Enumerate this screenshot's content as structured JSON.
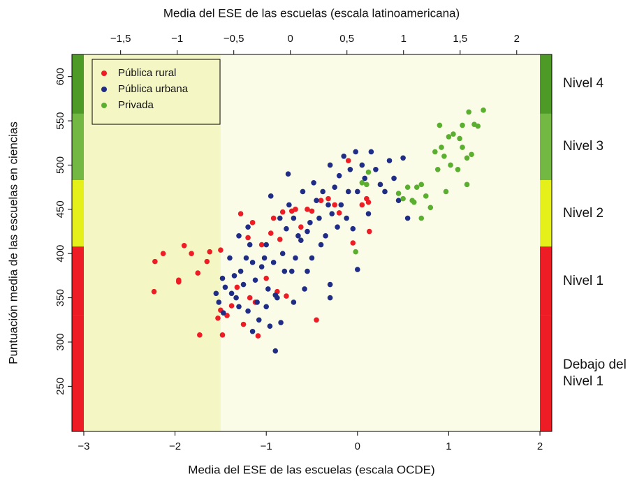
{
  "chart_data": {
    "type": "scatter",
    "x_label": "Media del ESE de las escuelas (escala OCDE)",
    "x2_label": "Media del ESE de las escuelas (escala latinoamericana)",
    "y_label": "Puntuación media de las escuelas en ciencias",
    "xlim": [
      -3.13,
      2.13
    ],
    "xticks": [
      {
        "value": -3,
        "label": "−3"
      },
      {
        "value": -2,
        "label": "−2"
      },
      {
        "value": -1,
        "label": "−1"
      },
      0,
      1,
      2
    ],
    "x2lim": [
      -1.93,
      2.31
    ],
    "x2ticks": [
      {
        "value": -1.5,
        "label": "−1,5"
      },
      {
        "value": -1,
        "label": "−1"
      },
      {
        "value": -0.5,
        "label": "−0,5"
      },
      0,
      {
        "value": 0.5,
        "label": "0,5"
      },
      1,
      {
        "value": 1.5,
        "label": "1,5"
      },
      2
    ],
    "ylim": [
      199,
      625
    ],
    "yticks": [
      250,
      300,
      350,
      400,
      450,
      500,
      550,
      600
    ],
    "shaded_below_x": -1.5,
    "legend": "top-left",
    "levels": [
      {
        "label": "Debajo del Nivel 1",
        "from": 199,
        "to": 330,
        "color": "#ee1c25"
      },
      {
        "label": "Nivel 1",
        "from": 330,
        "to": 408,
        "color": "#ee1c25"
      },
      {
        "label": "Nivel 2",
        "from": 408,
        "to": 483,
        "color": "#e5ef1a"
      },
      {
        "label": "Nivel 3",
        "from": 483,
        "to": 558,
        "color": "#72b843"
      },
      {
        "label": "Nivel 4",
        "from": 558,
        "to": 625,
        "color": "#4e9a26"
      }
    ],
    "series": [
      {
        "name": "Pública rural",
        "color": "#ee1c25",
        "x": [
          -2.23,
          -2.22,
          -2.13,
          -1.96,
          -1.96,
          -1.9,
          -1.82,
          -1.75,
          -1.73,
          -1.65,
          -1.62,
          -1.5,
          -1.53,
          -1.5,
          -1.48,
          -1.43,
          -1.38,
          -1.32,
          -1.28,
          -1.25,
          -1.2,
          -1.18,
          -1.15,
          -1.12,
          -1.09,
          -1.05,
          -1.0,
          -0.95,
          -0.92,
          -0.88,
          -0.85,
          -0.82,
          -0.78,
          -0.72,
          -0.68,
          -0.62,
          -0.55,
          -0.5,
          -0.45,
          -0.4,
          -0.32,
          -0.25,
          -0.2,
          -0.1,
          -0.05,
          0.05,
          0.1,
          0.12,
          0.13
        ],
        "y": [
          357,
          391,
          400,
          370,
          368,
          409,
          400,
          378,
          308,
          391,
          402,
          404,
          327,
          336,
          308,
          330,
          341,
          362,
          445,
          320,
          418,
          350,
          435,
          345,
          307,
          410,
          372,
          423,
          440,
          357,
          416,
          447,
          352,
          448,
          450,
          430,
          450,
          448,
          325,
          460,
          462,
          455,
          446,
          505,
          412,
          455,
          462,
          458,
          425
        ]
      },
      {
        "name": "Pública urbana",
        "color": "#1f2d86",
        "x": [
          -1.55,
          -1.52,
          -1.48,
          -1.47,
          -1.45,
          -1.4,
          -1.38,
          -1.35,
          -1.33,
          -1.3,
          -1.3,
          -1.28,
          -1.25,
          -1.22,
          -1.2,
          -1.2,
          -1.18,
          -1.15,
          -1.15,
          -1.12,
          -1.1,
          -1.08,
          -1.05,
          -1.02,
          -1.0,
          -1.0,
          -0.98,
          -0.96,
          -0.95,
          -0.92,
          -0.9,
          -0.9,
          -0.88,
          -0.85,
          -0.84,
          -0.82,
          -0.8,
          -0.78,
          -0.76,
          -0.75,
          -0.72,
          -0.7,
          -0.68,
          -0.65,
          -0.62,
          -0.6,
          -0.58,
          -0.55,
          -0.52,
          -0.5,
          -0.48,
          -0.45,
          -0.42,
          -0.4,
          -0.38,
          -0.35,
          -0.32,
          -0.3,
          -0.28,
          -0.25,
          -0.22,
          -0.2,
          -0.18,
          -0.15,
          -0.12,
          -0.1,
          -0.08,
          -0.05,
          -0.02,
          0.0,
          0.0,
          0.05,
          0.08,
          0.12,
          0.15,
          0.2,
          0.25,
          0.3,
          0.35,
          0.4,
          0.45,
          0.5,
          0.55,
          -0.3,
          -0.3,
          -0.55,
          -0.7
        ],
        "y": [
          355,
          345,
          372,
          333,
          362,
          395,
          355,
          375,
          350,
          340,
          420,
          380,
          365,
          395,
          430,
          335,
          410,
          390,
          312,
          370,
          345,
          325,
          385,
          395,
          340,
          410,
          360,
          318,
          465,
          390,
          353,
          290,
          350,
          440,
          322,
          400,
          380,
          428,
          490,
          455,
          380,
          440,
          395,
          420,
          415,
          470,
          360,
          425,
          435,
          395,
          480,
          460,
          440,
          410,
          470,
          420,
          455,
          500,
          445,
          475,
          430,
          488,
          455,
          510,
          440,
          470,
          495,
          428,
          515,
          470,
          382,
          500,
          485,
          445,
          515,
          495,
          478,
          470,
          505,
          485,
          460,
          508,
          440,
          365,
          350,
          380,
          345
        ]
      },
      {
        "name": "Privada",
        "color": "#5aaf2f",
        "x": [
          -0.02,
          0.05,
          0.1,
          0.12,
          0.45,
          0.5,
          0.55,
          0.6,
          0.62,
          0.65,
          0.7,
          0.75,
          0.8,
          0.85,
          0.88,
          0.9,
          0.92,
          0.95,
          0.97,
          1.0,
          1.02,
          1.05,
          1.1,
          1.12,
          1.15,
          1.2,
          1.22,
          1.25,
          1.28,
          1.32,
          1.38,
          1.15,
          1.2,
          0.7
        ],
        "y": [
          402,
          480,
          478,
          492,
          468,
          462,
          475,
          460,
          458,
          475,
          478,
          465,
          452,
          515,
          495,
          545,
          520,
          510,
          470,
          532,
          500,
          535,
          495,
          530,
          545,
          508,
          560,
          512,
          546,
          544,
          562,
          520,
          478,
          440
        ]
      }
    ]
  }
}
